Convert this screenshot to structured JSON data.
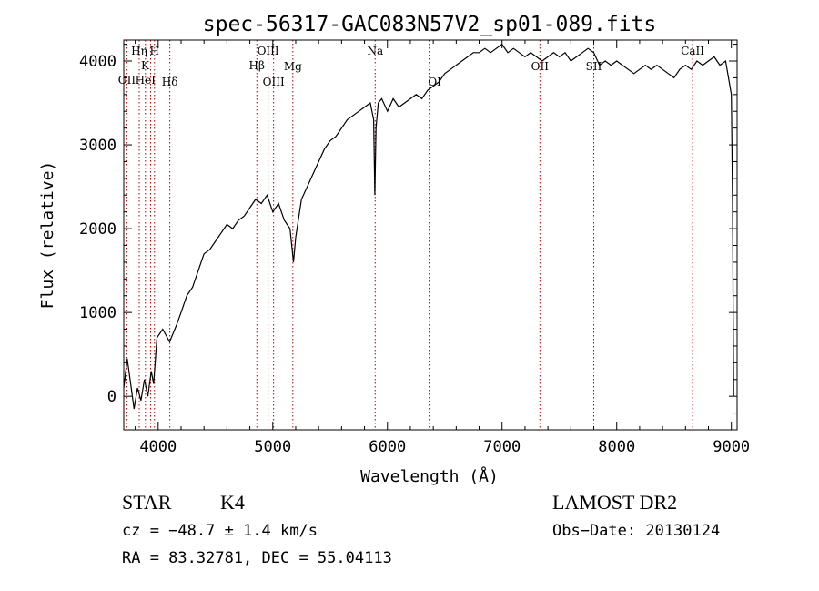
{
  "chart_data": {
    "type": "line",
    "title": "spec-56317-GAC083N57V2_sp01-089.fits",
    "xlabel": "Wavelength (Å)",
    "ylabel": "Flux (relative)",
    "xlim": [
      3700,
      9050
    ],
    "ylim": [
      -400,
      4250
    ],
    "xticks": [
      "4000",
      "5000",
      "6000",
      "7000",
      "8000",
      "9000"
    ],
    "xtick_values": [
      4000,
      5000,
      6000,
      7000,
      8000,
      9000
    ],
    "yticks": [
      "0",
      "1000",
      "2000",
      "3000",
      "4000"
    ],
    "ytick_values": [
      0,
      1000,
      2000,
      3000,
      4000
    ],
    "grid": false,
    "series": [
      {
        "values": [
          [
            3700,
            100
          ],
          [
            3730,
            450
          ],
          [
            3760,
            150
          ],
          [
            3790,
            -150
          ],
          [
            3820,
            100
          ],
          [
            3850,
            -50
          ],
          [
            3880,
            200
          ],
          [
            3910,
            0
          ],
          [
            3940,
            300
          ],
          [
            3960,
            150
          ],
          [
            3990,
            700
          ],
          [
            4040,
            800
          ],
          [
            4100,
            650
          ],
          [
            4160,
            850
          ],
          [
            4200,
            1000
          ],
          [
            4250,
            1200
          ],
          [
            4300,
            1300
          ],
          [
            4350,
            1500
          ],
          [
            4400,
            1700
          ],
          [
            4450,
            1750
          ],
          [
            4500,
            1850
          ],
          [
            4550,
            1950
          ],
          [
            4600,
            2050
          ],
          [
            4650,
            2000
          ],
          [
            4700,
            2100
          ],
          [
            4750,
            2150
          ],
          [
            4800,
            2250
          ],
          [
            4850,
            2350
          ],
          [
            4900,
            2300
          ],
          [
            4950,
            2400
          ],
          [
            5000,
            2200
          ],
          [
            5050,
            2300
          ],
          [
            5100,
            2100
          ],
          [
            5150,
            2000
          ],
          [
            5180,
            1600
          ],
          [
            5200,
            1900
          ],
          [
            5250,
            2350
          ],
          [
            5300,
            2500
          ],
          [
            5350,
            2650
          ],
          [
            5400,
            2800
          ],
          [
            5450,
            2950
          ],
          [
            5500,
            3050
          ],
          [
            5550,
            3100
          ],
          [
            5600,
            3200
          ],
          [
            5650,
            3300
          ],
          [
            5700,
            3350
          ],
          [
            5750,
            3400
          ],
          [
            5800,
            3450
          ],
          [
            5850,
            3500
          ],
          [
            5880,
            3300
          ],
          [
            5890,
            2400
          ],
          [
            5900,
            3200
          ],
          [
            5920,
            3500
          ],
          [
            5950,
            3550
          ],
          [
            6000,
            3400
          ],
          [
            6050,
            3550
          ],
          [
            6100,
            3450
          ],
          [
            6150,
            3500
          ],
          [
            6200,
            3550
          ],
          [
            6250,
            3600
          ],
          [
            6300,
            3550
          ],
          [
            6350,
            3650
          ],
          [
            6400,
            3700
          ],
          [
            6450,
            3750
          ],
          [
            6500,
            3850
          ],
          [
            6550,
            3900
          ],
          [
            6600,
            3950
          ],
          [
            6650,
            4000
          ],
          [
            6700,
            4050
          ],
          [
            6750,
            4100
          ],
          [
            6800,
            4100
          ],
          [
            6850,
            4150
          ],
          [
            6900,
            4100
          ],
          [
            6950,
            4150
          ],
          [
            7000,
            4200
          ],
          [
            7050,
            4100
          ],
          [
            7100,
            4150
          ],
          [
            7150,
            4100
          ],
          [
            7200,
            4050
          ],
          [
            7250,
            4100
          ],
          [
            7300,
            4050
          ],
          [
            7350,
            4000
          ],
          [
            7400,
            4050
          ],
          [
            7450,
            4100
          ],
          [
            7500,
            4050
          ],
          [
            7550,
            4100
          ],
          [
            7600,
            4000
          ],
          [
            7650,
            4050
          ],
          [
            7700,
            4100
          ],
          [
            7750,
            4150
          ],
          [
            7800,
            4100
          ],
          [
            7850,
            3950
          ],
          [
            7900,
            4000
          ],
          [
            7950,
            3950
          ],
          [
            8000,
            4000
          ],
          [
            8050,
            3950
          ],
          [
            8100,
            3900
          ],
          [
            8150,
            3850
          ],
          [
            8200,
            3900
          ],
          [
            8250,
            3950
          ],
          [
            8300,
            3900
          ],
          [
            8350,
            3950
          ],
          [
            8400,
            3900
          ],
          [
            8450,
            3850
          ],
          [
            8500,
            3800
          ],
          [
            8550,
            3900
          ],
          [
            8600,
            3950
          ],
          [
            8650,
            3900
          ],
          [
            8700,
            4000
          ],
          [
            8750,
            3950
          ],
          [
            8800,
            4000
          ],
          [
            8850,
            4050
          ],
          [
            8900,
            3950
          ],
          [
            8950,
            4000
          ],
          [
            9000,
            3600
          ],
          [
            9010,
            2300
          ],
          [
            9020,
            0
          ]
        ]
      }
    ],
    "lines": [
      {
        "label": "OII",
        "x": 3727
      },
      {
        "label": "Hη",
        "x": 3835
      },
      {
        "label": "HeI",
        "x": 3889
      },
      {
        "label": "K",
        "x": 3934
      },
      {
        "label": "H",
        "x": 3968
      },
      {
        "label": "Hδ",
        "x": 4102
      },
      {
        "label": "Hβ",
        "x": 4861
      },
      {
        "label": "OIII",
        "x": 4959
      },
      {
        "label": "OIII",
        "x": 5007
      },
      {
        "label": "Mg",
        "x": 5175
      },
      {
        "label": "Na",
        "x": 5893
      },
      {
        "label": "OI",
        "x": 6364
      },
      {
        "label": "CaII",
        "x": 8662
      },
      {
        "label": "OII",
        "x": 7330
      },
      {
        "label": "SII",
        "x": 7800
      }
    ]
  },
  "info": {
    "object_class": "STAR",
    "subclass": "K4",
    "survey": "LAMOST DR2",
    "redshift": "cz = −48.7 ± 1.4 km/s",
    "obs_date": "Obs−Date: 20130124",
    "coords": "RA =  83.32781, DEC =  55.04113"
  },
  "colors": {
    "line": "#000000",
    "marker": "#b00000"
  }
}
